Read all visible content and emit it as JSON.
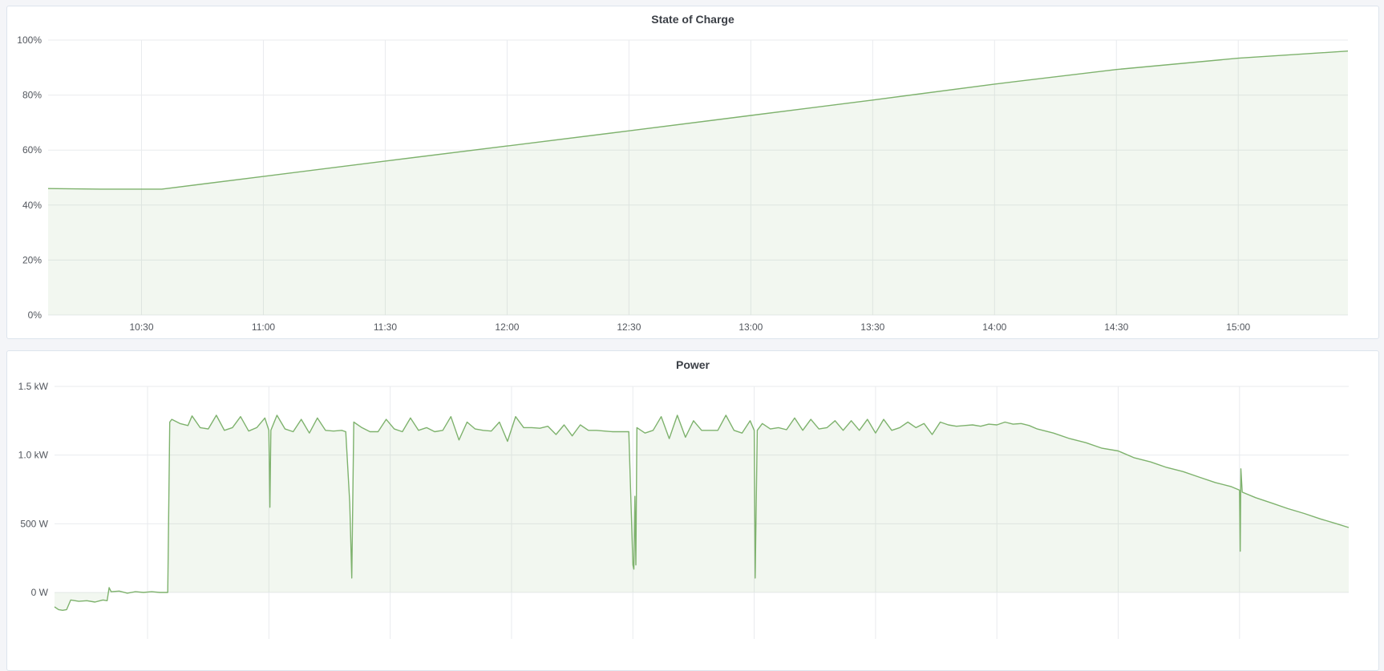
{
  "chart_data": [
    {
      "type": "area",
      "title": "State of Charge",
      "xlim": [
        "10:07",
        "15:27"
      ],
      "ylim": [
        0,
        100
      ],
      "y_ticks": [
        0,
        20,
        40,
        60,
        80,
        100
      ],
      "y_tick_labels": [
        "0%",
        "20%",
        "40%",
        "60%",
        "80%",
        "100%"
      ],
      "x_ticks": [
        "10:30",
        "11:00",
        "11:30",
        "12:00",
        "12:30",
        "13:00",
        "13:30",
        "14:00",
        "14:30",
        "15:00"
      ],
      "x_tick_labels": [
        "10:30",
        "11:00",
        "11:30",
        "12:00",
        "12:30",
        "13:00",
        "13:30",
        "14:00",
        "14:30",
        "15:00"
      ],
      "grid": true,
      "color": "#7eb26d",
      "series": [
        {
          "points": [
            [
              "10:07",
              46
            ],
            [
              "10:20",
              45.8
            ],
            [
              "10:35",
              45.8
            ],
            [
              "11:00",
              50.4
            ],
            [
              "11:30",
              56
            ],
            [
              "12:00",
              61.5
            ],
            [
              "12:30",
              67
            ],
            [
              "13:00",
              72.6
            ],
            [
              "13:30",
              78.2
            ],
            [
              "14:00",
              84
            ],
            [
              "14:30",
              89.3
            ],
            [
              "15:00",
              93.4
            ],
            [
              "15:27",
              96
            ]
          ]
        }
      ]
    },
    {
      "type": "area",
      "title": "Power",
      "xlim": [
        "10:07",
        "15:27"
      ],
      "ylim": [
        -500,
        1500
      ],
      "y_ticks": [
        0,
        500,
        1000,
        1500
      ],
      "y_tick_labels": [
        "0 W",
        "500 W",
        "1.0 kW",
        "1.5 kW"
      ],
      "x_ticks": [
        "10:30",
        "11:00",
        "11:30",
        "12:00",
        "12:30",
        "13:00",
        "13:30",
        "14:00",
        "14:30",
        "15:00"
      ],
      "grid": true,
      "color": "#7eb26d",
      "series": [
        {
          "points": [
            [
              "10:07",
              -105
            ],
            [
              "10:08",
              -125
            ],
            [
              "10:09",
              -130
            ],
            [
              "10:10",
              -125
            ],
            [
              "10:11",
              -55
            ],
            [
              "10:13",
              -65
            ],
            [
              "10:15",
              -60
            ],
            [
              "10:17",
              -70
            ],
            [
              "10:19",
              -55
            ],
            [
              "10:20",
              -60
            ],
            [
              "10:20:30",
              35
            ],
            [
              "10:21",
              5
            ],
            [
              "10:23",
              10
            ],
            [
              "10:25",
              -5
            ],
            [
              "10:27",
              5
            ],
            [
              "10:29",
              0
            ],
            [
              "10:31",
              5
            ],
            [
              "10:33",
              0
            ],
            [
              "10:35",
              0
            ],
            [
              "10:35:30",
              1240
            ],
            [
              "10:36",
              1260
            ],
            [
              "10:38",
              1230
            ],
            [
              "10:40",
              1215
            ],
            [
              "10:41",
              1285
            ],
            [
              "10:43",
              1200
            ],
            [
              "10:45",
              1190
            ],
            [
              "10:47",
              1290
            ],
            [
              "10:49",
              1180
            ],
            [
              "10:51",
              1200
            ],
            [
              "10:53",
              1280
            ],
            [
              "10:55",
              1175
            ],
            [
              "10:57",
              1200
            ],
            [
              "10:59",
              1270
            ],
            [
              "11:00",
              1180
            ],
            [
              "11:00:15",
              620
            ],
            [
              "11:00:30",
              1180
            ],
            [
              "11:02",
              1290
            ],
            [
              "11:04",
              1190
            ],
            [
              "11:06",
              1170
            ],
            [
              "11:08",
              1260
            ],
            [
              "11:10",
              1160
            ],
            [
              "11:12",
              1270
            ],
            [
              "11:14",
              1180
            ],
            [
              "11:16",
              1175
            ],
            [
              "11:18",
              1180
            ],
            [
              "11:19",
              1170
            ],
            [
              "11:20",
              650
            ],
            [
              "11:20:30",
              105
            ],
            [
              "11:21",
              1240
            ],
            [
              "11:23",
              1200
            ],
            [
              "11:25",
              1170
            ],
            [
              "11:27",
              1170
            ],
            [
              "11:29",
              1260
            ],
            [
              "11:31",
              1190
            ],
            [
              "11:33",
              1170
            ],
            [
              "11:35",
              1270
            ],
            [
              "11:37",
              1180
            ],
            [
              "11:39",
              1200
            ],
            [
              "11:41",
              1170
            ],
            [
              "11:43",
              1180
            ],
            [
              "11:45",
              1280
            ],
            [
              "11:47",
              1110
            ],
            [
              "11:49",
              1240
            ],
            [
              "11:51",
              1190
            ],
            [
              "11:53",
              1180
            ],
            [
              "11:55",
              1175
            ],
            [
              "11:57",
              1240
            ],
            [
              "11:59",
              1100
            ],
            [
              "12:01",
              1280
            ],
            [
              "12:03",
              1200
            ],
            [
              "12:05",
              1200
            ],
            [
              "12:07",
              1195
            ],
            [
              "12:09",
              1210
            ],
            [
              "12:11",
              1150
            ],
            [
              "12:13",
              1220
            ],
            [
              "12:15",
              1140
            ],
            [
              "12:17",
              1220
            ],
            [
              "12:19",
              1180
            ],
            [
              "12:21",
              1180
            ],
            [
              "12:23",
              1175
            ],
            [
              "12:25",
              1170
            ],
            [
              "12:29",
              1170
            ],
            [
              "12:30",
              200
            ],
            [
              "12:30:15",
              170
            ],
            [
              "12:30:30",
              700
            ],
            [
              "12:30:45",
              200
            ],
            [
              "12:31",
              1200
            ],
            [
              "12:33",
              1160
            ],
            [
              "12:35",
              1180
            ],
            [
              "12:37",
              1280
            ],
            [
              "12:39",
              1120
            ],
            [
              "12:41",
              1290
            ],
            [
              "12:43",
              1130
            ],
            [
              "12:45",
              1250
            ],
            [
              "12:47",
              1180
            ],
            [
              "12:49",
              1180
            ],
            [
              "12:51",
              1180
            ],
            [
              "12:53",
              1290
            ],
            [
              "12:55",
              1180
            ],
            [
              "12:57",
              1160
            ],
            [
              "12:59",
              1250
            ],
            [
              "13:00",
              1180
            ],
            [
              "13:00:15",
              105
            ],
            [
              "13:00:45",
              1180
            ],
            [
              "13:02",
              1230
            ],
            [
              "13:04",
              1190
            ],
            [
              "13:06",
              1200
            ],
            [
              "13:08",
              1185
            ],
            [
              "13:10",
              1270
            ],
            [
              "13:12",
              1180
            ],
            [
              "13:14",
              1260
            ],
            [
              "13:16",
              1190
            ],
            [
              "13:18",
              1200
            ],
            [
              "13:20",
              1250
            ],
            [
              "13:22",
              1180
            ],
            [
              "13:24",
              1250
            ],
            [
              "13:26",
              1180
            ],
            [
              "13:28",
              1260
            ],
            [
              "13:30",
              1160
            ],
            [
              "13:32",
              1260
            ],
            [
              "13:34",
              1180
            ],
            [
              "13:36",
              1200
            ],
            [
              "13:38",
              1240
            ],
            [
              "13:40",
              1200
            ],
            [
              "13:42",
              1230
            ],
            [
              "13:44",
              1150
            ],
            [
              "13:46",
              1240
            ],
            [
              "13:48",
              1220
            ],
            [
              "13:50",
              1210
            ],
            [
              "13:52",
              1215
            ],
            [
              "13:54",
              1220
            ],
            [
              "13:56",
              1210
            ],
            [
              "13:58",
              1225
            ],
            [
              "14:00",
              1220
            ],
            [
              "14:02",
              1240
            ],
            [
              "14:04",
              1225
            ],
            [
              "14:06",
              1230
            ],
            [
              "14:08",
              1215
            ],
            [
              "14:10",
              1190
            ],
            [
              "14:14",
              1160
            ],
            [
              "14:18",
              1120
            ],
            [
              "14:22",
              1090
            ],
            [
              "14:26",
              1050
            ],
            [
              "14:30",
              1030
            ],
            [
              "14:34",
              980
            ],
            [
              "14:38",
              950
            ],
            [
              "14:42",
              910
            ],
            [
              "14:46",
              880
            ],
            [
              "14:50",
              840
            ],
            [
              "14:54",
              800
            ],
            [
              "14:58",
              770
            ],
            [
              "15:00",
              745
            ],
            [
              "15:00:10",
              300
            ],
            [
              "15:00:20",
              900
            ],
            [
              "15:00:40",
              730
            ],
            [
              "15:04",
              690
            ],
            [
              "15:08",
              650
            ],
            [
              "15:12",
              610
            ],
            [
              "15:16",
              575
            ],
            [
              "15:20",
              535
            ],
            [
              "15:24",
              500
            ],
            [
              "15:27",
              473
            ]
          ]
        }
      ]
    }
  ]
}
